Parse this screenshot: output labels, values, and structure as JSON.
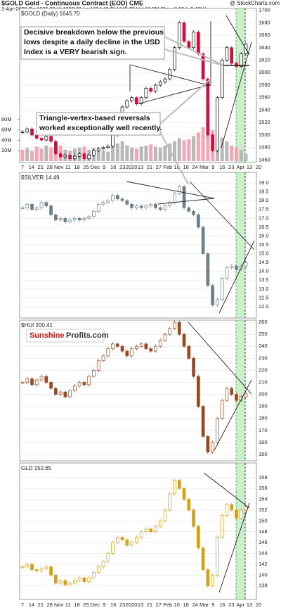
{
  "chart_data": [
    {
      "type": "candlestick",
      "title": "$GOLD Gold - Continuous Contract (EOD) CME",
      "source": "@ StockCharts.com",
      "subtitle": "3-Apr-2020 Op 1635.30 Hi 1652.80 Lo 1624.40 Cl 1645.70 Vol 13.2M Chg +8.00 (+0.49%)",
      "legend": "$GOLD (Daily) 1645.70",
      "up_color": "#000000",
      "down_color": "#d0103a",
      "values": [
        1505,
        1510,
        1500,
        1495,
        1492,
        1498,
        1490,
        1470,
        1465,
        1468,
        1462,
        1466,
        1470,
        1462,
        1468,
        1475,
        1478,
        1480,
        1482,
        1500,
        1520,
        1545,
        1555,
        1560,
        1550,
        1560,
        1575,
        1570,
        1580,
        1585,
        1590,
        1605,
        1640,
        1680,
        1650,
        1640,
        1665,
        1630,
        1590,
        1500,
        1475,
        1560,
        1620,
        1640,
        1615,
        1610,
        1630,
        1645.7
      ],
      "ylim": [
        1456,
        1704
      ],
      "yticks": [
        1460,
        1480,
        1500,
        1520,
        1540,
        1560,
        1580,
        1600,
        1620,
        1640,
        1660,
        1680,
        1700
      ],
      "volume": {
        "color": "#f2a7b8",
        "up_color": "#b8b8b8",
        "values": [
          22,
          25,
          20,
          28,
          24,
          30,
          26,
          35,
          30,
          22,
          20,
          24,
          26,
          28,
          22,
          25,
          24,
          20,
          18,
          30,
          34,
          38,
          30,
          26,
          24,
          28,
          30,
          32,
          28,
          26,
          30,
          34,
          38,
          44,
          40,
          42,
          48,
          55,
          65,
          70,
          60,
          52,
          45,
          38,
          30,
          26,
          22,
          13.2
        ],
        "ylim": [
          0,
          100
        ],
        "yticks": [
          {
            "value": 20,
            "label": "20M"
          },
          {
            "value": 40,
            "label": "40M"
          },
          {
            "value": 60,
            "label": "60M"
          },
          {
            "value": 80,
            "label": "80M"
          }
        ]
      },
      "annotations": [
        [
          "Decisive breakdown below the previous",
          "lows despite a daily decline in the USD",
          "Index is a VERY bearish sign."
        ],
        [
          "Triangle-vertex-based reversals",
          "worked exceptionally well recently."
        ]
      ],
      "x_labels": [
        "7",
        "14",
        "21",
        "28",
        "Nov",
        "11",
        "18",
        "25",
        "Dec",
        "9",
        "16",
        "23",
        "2020",
        "13",
        "21",
        "27",
        "Feb",
        "10",
        "18",
        "24",
        "Mar",
        "9",
        "16",
        "23",
        "Apr",
        "13",
        "20"
      ],
      "grid": true
    },
    {
      "type": "candlestick",
      "legend": "$SILVER 14.49",
      "up_color": "#6e7f8a",
      "down_color": "#6e7f8a",
      "values": [
        17.6,
        17.8,
        17.5,
        17.6,
        17.9,
        17.7,
        17.2,
        16.9,
        17.0,
        16.8,
        16.9,
        17.0,
        16.9,
        17.0,
        17.1,
        17.4,
        17.8,
        17.9,
        18.0,
        18.3,
        18.1,
        18.0,
        17.8,
        17.6,
        17.7,
        17.6,
        17.7,
        17.8,
        17.6,
        17.5,
        17.7,
        17.9,
        18.4,
        18.8,
        17.6,
        17.4,
        17.2,
        16.5,
        15.0,
        13.2,
        12.1,
        12.4,
        13.6,
        14.2,
        14.3,
        14.1,
        14.3,
        14.49
      ],
      "ylim": [
        11.36,
        19.6
      ],
      "yticks": [
        {
          "value": 12,
          "label": "12.0"
        },
        12.5,
        {
          "value": 13,
          "label": "13.0"
        },
        13.5,
        {
          "value": 14,
          "label": "14.0"
        },
        14.5,
        {
          "value": 15,
          "label": "15.0"
        },
        15.5,
        {
          "value": 16,
          "label": "16.0"
        },
        16.5,
        {
          "value": 17,
          "label": "17.0"
        },
        17.5,
        {
          "value": 18,
          "label": "18.0"
        },
        18.5,
        {
          "value": 19,
          "label": "19.0"
        }
      ],
      "grid": true
    },
    {
      "type": "candlestick",
      "legend": "$HUI 200.41",
      "watermark": [
        "Sunshine",
        "Profits.com"
      ],
      "up_color": "#9a4a22",
      "down_color": "#9a4a22",
      "values": [
        210,
        213,
        208,
        212,
        215,
        210,
        205,
        200,
        202,
        198,
        203,
        207,
        210,
        208,
        215,
        220,
        228,
        232,
        238,
        242,
        240,
        236,
        232,
        238,
        240,
        242,
        238,
        236,
        240,
        245,
        250,
        255,
        260,
        250,
        240,
        230,
        215,
        190,
        165,
        152,
        160,
        180,
        195,
        205,
        200,
        195,
        198,
        200.41
      ],
      "ylim": [
        144.7,
        261.8
      ],
      "yticks": [
        150,
        160,
        170,
        180,
        190,
        200,
        210,
        220,
        230,
        240,
        250,
        260
      ],
      "grid": true
    },
    {
      "type": "candlestick",
      "legend": "GLD 152.65",
      "up_color": "#d4a017",
      "down_color": "#d4a017",
      "values": [
        141.5,
        142,
        141,
        140.8,
        141.2,
        141.5,
        140,
        138.5,
        139,
        138.2,
        138.5,
        139,
        139.5,
        138.8,
        139.5,
        140.5,
        141.5,
        142.5,
        144,
        146,
        147,
        146.5,
        145.5,
        146,
        147,
        148,
        148.5,
        148,
        149,
        150,
        152,
        155,
        157.5,
        156,
        154,
        152,
        149,
        145,
        141,
        138,
        140,
        147,
        151,
        153,
        152,
        150.5,
        152,
        152.65
      ],
      "ylim": [
        135.5,
        160.7
      ],
      "yticks": [
        138,
        140,
        142,
        144,
        146,
        148,
        150,
        152,
        154,
        156,
        158
      ],
      "x_labels": [
        "7",
        "14",
        "21",
        "28",
        "Nov",
        "11",
        "18",
        "25",
        "Dec",
        "9",
        "16",
        "23",
        "2020",
        "13",
        "21",
        "27",
        "Feb",
        "10",
        "18",
        "24",
        "Mar",
        "9",
        "16",
        "23",
        "Apr",
        "13",
        "20"
      ],
      "grid": true
    }
  ]
}
